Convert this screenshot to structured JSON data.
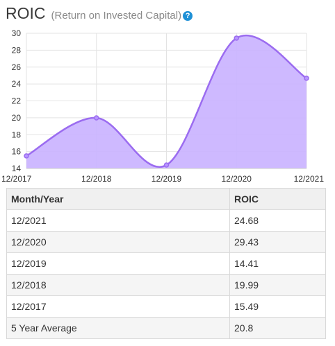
{
  "header": {
    "title": "ROIC",
    "subtitle": "(Return on Invested Capital)",
    "help_symbol": "?"
  },
  "chart_data": {
    "type": "area",
    "title": "ROIC",
    "x": [
      "12/2017",
      "12/2018",
      "12/2019",
      "12/2020",
      "12/2021"
    ],
    "series": [
      {
        "values": [
          15.49,
          19.99,
          14.41,
          29.43,
          24.68
        ]
      }
    ],
    "ylim": [
      14,
      30
    ],
    "yticks": [
      14,
      16,
      18,
      20,
      22,
      24,
      26,
      28,
      30
    ],
    "grid": true,
    "colors": {
      "line": "#9b6cf0",
      "fill": "#c9b1ff",
      "point": "#9b6cf0"
    }
  },
  "table": {
    "headers": [
      "Month/Year",
      "ROIC"
    ],
    "rows": [
      [
        "12/2021",
        "24.68"
      ],
      [
        "12/2020",
        "29.43"
      ],
      [
        "12/2019",
        "14.41"
      ],
      [
        "12/2018",
        "19.99"
      ],
      [
        "12/2017",
        "15.49"
      ],
      [
        "5 Year Average",
        "20.8"
      ]
    ]
  }
}
